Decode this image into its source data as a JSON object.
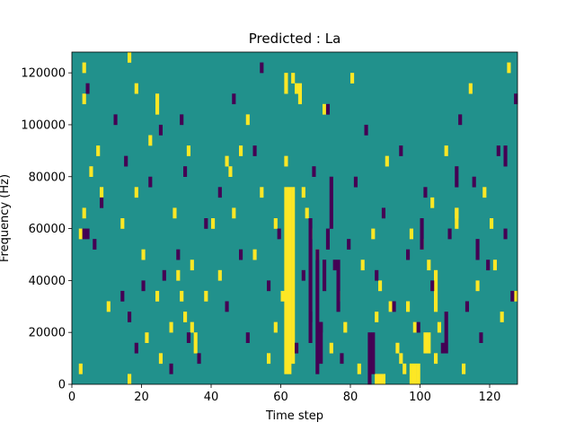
{
  "chart_data": {
    "type": "heatmap",
    "title": "Predicted : La",
    "xlabel": "Time step",
    "ylabel": "Frequency (Hz)",
    "xlim": [
      0,
      128
    ],
    "ylim": [
      0,
      128000
    ],
    "x_ticks": [
      0,
      20,
      40,
      60,
      80,
      100,
      120
    ],
    "y_ticks": [
      0,
      20000,
      40000,
      60000,
      80000,
      100000,
      120000
    ],
    "x_tick_labels": [
      "0",
      "20",
      "40",
      "60",
      "80",
      "100",
      "120"
    ],
    "y_tick_labels": [
      "0",
      "20000",
      "40000",
      "60000",
      "80000",
      "100000",
      "120000"
    ],
    "n_time_steps": 128,
    "n_frequency_bins": 32,
    "colormap": "viridis",
    "background_value": 0,
    "background_color": "#21918c",
    "low_color": "#440154",
    "high_color": "#fde725",
    "note_values": "cell value +1 = high (yellow), -1 = low (purple), 0 = background (teal); frequency bins are 4000 Hz wide",
    "high_cells": [
      {
        "t": 3,
        "bin": 30
      },
      {
        "t": 3,
        "bin": 27
      },
      {
        "t": 3,
        "bin": 16
      },
      {
        "t": 2,
        "bin": 14
      },
      {
        "t": 2,
        "bin": 1
      },
      {
        "t": 5,
        "bin": 20
      },
      {
        "t": 7,
        "bin": 22
      },
      {
        "t": 8,
        "bin": 18
      },
      {
        "t": 10,
        "bin": 7
      },
      {
        "t": 14,
        "bin": 15
      },
      {
        "t": 16,
        "bin": 0
      },
      {
        "t": 16,
        "bin": 31
      },
      {
        "t": 18,
        "bin": 18
      },
      {
        "t": 18,
        "bin": 28
      },
      {
        "t": 20,
        "bin": 12
      },
      {
        "t": 21,
        "bin": 4
      },
      {
        "t": 22,
        "bin": 23
      },
      {
        "t": 24,
        "bin": 27
      },
      {
        "t": 24,
        "bin": 26
      },
      {
        "t": 24,
        "bin": 8
      },
      {
        "t": 25,
        "bin": 2
      },
      {
        "t": 28,
        "bin": 5
      },
      {
        "t": 29,
        "bin": 16
      },
      {
        "t": 30,
        "bin": 10
      },
      {
        "t": 31,
        "bin": 8
      },
      {
        "t": 32,
        "bin": 6
      },
      {
        "t": 33,
        "bin": 22
      },
      {
        "t": 34,
        "bin": 11
      },
      {
        "t": 34,
        "bin": 5
      },
      {
        "t": 35,
        "bin": 4
      },
      {
        "t": 35,
        "bin": 3
      },
      {
        "t": 38,
        "bin": 8
      },
      {
        "t": 40,
        "bin": 15
      },
      {
        "t": 42,
        "bin": 10
      },
      {
        "t": 44,
        "bin": 21
      },
      {
        "t": 45,
        "bin": 20
      },
      {
        "t": 46,
        "bin": 16
      },
      {
        "t": 48,
        "bin": 22
      },
      {
        "t": 50,
        "bin": 25
      },
      {
        "t": 52,
        "bin": 12
      },
      {
        "t": 54,
        "bin": 18
      },
      {
        "t": 56,
        "bin": 2
      },
      {
        "t": 58,
        "bin": 5
      },
      {
        "t": 58,
        "bin": 15
      },
      {
        "t": 60,
        "bin": 8
      },
      {
        "t": 61,
        "bin": 21
      },
      {
        "t": 63,
        "bin": 29
      },
      {
        "t": 64,
        "bin": 28
      },
      {
        "t": 66,
        "bin": 18
      },
      {
        "t": 67,
        "bin": 16
      },
      {
        "t": 68,
        "bin": 14
      },
      {
        "t": 70,
        "bin": 12
      },
      {
        "t": 72,
        "bin": 26
      },
      {
        "t": 74,
        "bin": 3
      },
      {
        "t": 76,
        "bin": 8
      },
      {
        "t": 78,
        "bin": 5
      },
      {
        "t": 80,
        "bin": 29
      },
      {
        "t": 82,
        "bin": 1
      },
      {
        "t": 83,
        "bin": 11
      },
      {
        "t": 86,
        "bin": 14
      },
      {
        "t": 87,
        "bin": 6
      },
      {
        "t": 88,
        "bin": 9
      },
      {
        "t": 90,
        "bin": 21
      },
      {
        "t": 91,
        "bin": 7
      },
      {
        "t": 93,
        "bin": 3
      },
      {
        "t": 94,
        "bin": 2
      },
      {
        "t": 95,
        "bin": 1
      },
      {
        "t": 96,
        "bin": 7
      },
      {
        "t": 97,
        "bin": 14
      },
      {
        "t": 98,
        "bin": 5
      },
      {
        "t": 100,
        "bin": 13
      },
      {
        "t": 102,
        "bin": 11
      },
      {
        "t": 103,
        "bin": 17
      },
      {
        "t": 104,
        "bin": 2
      },
      {
        "t": 105,
        "bin": 5
      },
      {
        "t": 107,
        "bin": 22
      },
      {
        "t": 110,
        "bin": 16
      },
      {
        "t": 112,
        "bin": 1
      },
      {
        "t": 114,
        "bin": 28
      },
      {
        "t": 116,
        "bin": 9
      },
      {
        "t": 118,
        "bin": 18
      },
      {
        "t": 120,
        "bin": 15
      },
      {
        "t": 121,
        "bin": 11
      },
      {
        "t": 123,
        "bin": 6
      },
      {
        "t": 125,
        "bin": 30
      },
      {
        "t": 127,
        "bin": 8
      }
    ],
    "high_runs": [
      {
        "t": 61,
        "bin_start": 1,
        "bin_end": 18
      },
      {
        "t": 62,
        "bin_start": 1,
        "bin_end": 18
      },
      {
        "t": 63,
        "bin_start": 2,
        "bin_end": 18
      },
      {
        "t": 87,
        "bin_start": 0,
        "bin_end": 0
      },
      {
        "t": 88,
        "bin_start": 0,
        "bin_end": 0
      },
      {
        "t": 89,
        "bin_start": 0,
        "bin_end": 0
      },
      {
        "t": 97,
        "bin_start": 0,
        "bin_end": 1
      },
      {
        "t": 98,
        "bin_start": 0,
        "bin_end": 1
      },
      {
        "t": 99,
        "bin_start": 0,
        "bin_end": 1
      },
      {
        "t": 101,
        "bin_start": 3,
        "bin_end": 4
      },
      {
        "t": 102,
        "bin_start": 3,
        "bin_end": 4
      },
      {
        "t": 104,
        "bin_start": 7,
        "bin_end": 10
      },
      {
        "t": 110,
        "bin_start": 15,
        "bin_end": 16
      },
      {
        "t": 61,
        "bin_start": 28,
        "bin_end": 29
      },
      {
        "t": 65,
        "bin_start": 27,
        "bin_end": 28
      }
    ],
    "low_cells": [
      {
        "t": 4,
        "bin": 28
      },
      {
        "t": 6,
        "bin": 13
      },
      {
        "t": 8,
        "bin": 17
      },
      {
        "t": 12,
        "bin": 25
      },
      {
        "t": 14,
        "bin": 8
      },
      {
        "t": 15,
        "bin": 21
      },
      {
        "t": 16,
        "bin": 6
      },
      {
        "t": 18,
        "bin": 3
      },
      {
        "t": 20,
        "bin": 9
      },
      {
        "t": 22,
        "bin": 19
      },
      {
        "t": 25,
        "bin": 24
      },
      {
        "t": 26,
        "bin": 10
      },
      {
        "t": 28,
        "bin": 1
      },
      {
        "t": 30,
        "bin": 12
      },
      {
        "t": 31,
        "bin": 25
      },
      {
        "t": 32,
        "bin": 20
      },
      {
        "t": 33,
        "bin": 4
      },
      {
        "t": 36,
        "bin": 2
      },
      {
        "t": 38,
        "bin": 15
      },
      {
        "t": 42,
        "bin": 18
      },
      {
        "t": 44,
        "bin": 7
      },
      {
        "t": 46,
        "bin": 27
      },
      {
        "t": 48,
        "bin": 12
      },
      {
        "t": 50,
        "bin": 4
      },
      {
        "t": 52,
        "bin": 22
      },
      {
        "t": 54,
        "bin": 30
      },
      {
        "t": 56,
        "bin": 9
      },
      {
        "t": 59,
        "bin": 14
      },
      {
        "t": 64,
        "bin": 3
      },
      {
        "t": 66,
        "bin": 10
      },
      {
        "t": 68,
        "bin": 6
      },
      {
        "t": 69,
        "bin": 20
      },
      {
        "t": 71,
        "bin": 5
      },
      {
        "t": 73,
        "bin": 26
      },
      {
        "t": 75,
        "bin": 11
      },
      {
        "t": 77,
        "bin": 2
      },
      {
        "t": 79,
        "bin": 13
      },
      {
        "t": 81,
        "bin": 19
      },
      {
        "t": 84,
        "bin": 24
      },
      {
        "t": 85,
        "bin": 0
      },
      {
        "t": 87,
        "bin": 10
      },
      {
        "t": 89,
        "bin": 16
      },
      {
        "t": 92,
        "bin": 7
      },
      {
        "t": 94,
        "bin": 22
      },
      {
        "t": 96,
        "bin": 12
      },
      {
        "t": 99,
        "bin": 5
      },
      {
        "t": 101,
        "bin": 18
      },
      {
        "t": 103,
        "bin": 9
      },
      {
        "t": 106,
        "bin": 3
      },
      {
        "t": 108,
        "bin": 14
      },
      {
        "t": 111,
        "bin": 25
      },
      {
        "t": 113,
        "bin": 7
      },
      {
        "t": 115,
        "bin": 19
      },
      {
        "t": 117,
        "bin": 4
      },
      {
        "t": 119,
        "bin": 11
      },
      {
        "t": 122,
        "bin": 22
      },
      {
        "t": 124,
        "bin": 14
      },
      {
        "t": 126,
        "bin": 8
      },
      {
        "t": 127,
        "bin": 27
      }
    ],
    "low_runs": [
      {
        "t": 68,
        "bin_start": 4,
        "bin_end": 15
      },
      {
        "t": 70,
        "bin_start": 1,
        "bin_end": 12
      },
      {
        "t": 71,
        "bin_start": 2,
        "bin_end": 5
      },
      {
        "t": 72,
        "bin_start": 9,
        "bin_end": 11
      },
      {
        "t": 74,
        "bin_start": 15,
        "bin_end": 19
      },
      {
        "t": 76,
        "bin_start": 7,
        "bin_end": 11
      },
      {
        "t": 85,
        "bin_start": 1,
        "bin_end": 4
      },
      {
        "t": 86,
        "bin_start": 1,
        "bin_end": 4
      },
      {
        "t": 100,
        "bin_start": 13,
        "bin_end": 15
      },
      {
        "t": 73,
        "bin_start": 13,
        "bin_end": 14
      },
      {
        "t": 3,
        "bin_start": 14,
        "bin_end": 14
      },
      {
        "t": 4,
        "bin_start": 14,
        "bin_end": 14
      },
      {
        "t": 107,
        "bin_start": 3,
        "bin_end": 6
      },
      {
        "t": 110,
        "bin_start": 19,
        "bin_end": 20
      },
      {
        "t": 116,
        "bin_start": 12,
        "bin_end": 13
      },
      {
        "t": 124,
        "bin_start": 21,
        "bin_end": 22
      }
    ]
  }
}
